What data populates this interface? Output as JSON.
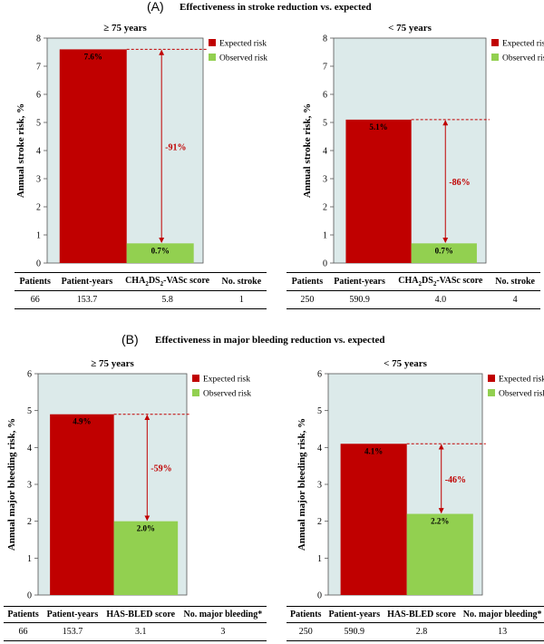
{
  "panelA": {
    "letter": "(A)",
    "heading": "Effectiveness in stroke reduction vs. expected",
    "subheading": "Effectiveness in stroke reduction vs. expected"
  },
  "panelB": {
    "letter": "(B)",
    "heading": "Effectiveness in major bleeding reduction vs. expected"
  },
  "legend": {
    "expected": "Expected risk",
    "observed": "Observed risk"
  },
  "colors": {
    "expected": "#c00000",
    "observed": "#92d050",
    "plot_bg": "#dceaea",
    "arrow": "#c00000"
  },
  "chart_data": [
    {
      "type": "bar",
      "title": "≥ 75 years",
      "ylabel": "Annual stroke risk, %",
      "ylim": [
        0,
        8
      ],
      "yticks": [
        0,
        1,
        2,
        3,
        4,
        5,
        6,
        7,
        8
      ],
      "categories": [
        "Expected risk",
        "Observed risk"
      ],
      "values": [
        7.6,
        0.7
      ],
      "data_labels": [
        "7.6%",
        "0.7%"
      ],
      "reduction_label": "-91%",
      "table": {
        "headers": [
          "Patients",
          "Patient-years",
          "CHA2DS2-VASc score",
          "No. stroke"
        ],
        "values": [
          "66",
          "153.7",
          "5.8",
          "1"
        ]
      }
    },
    {
      "type": "bar",
      "title": "< 75 years",
      "ylabel": "Annual stroke risk, %",
      "ylim": [
        0,
        8
      ],
      "yticks": [
        0,
        1,
        2,
        3,
        4,
        5,
        6,
        7,
        8
      ],
      "categories": [
        "Expected risk",
        "Observed risk"
      ],
      "values": [
        5.1,
        0.7
      ],
      "data_labels": [
        "5.1%",
        "0.7%"
      ],
      "reduction_label": "-86%",
      "table": {
        "headers": [
          "Patients",
          "Patient-years",
          "CHA2DS2-VASc score",
          "No. stroke"
        ],
        "values": [
          "250",
          "590.9",
          "4.0",
          "4"
        ]
      }
    },
    {
      "type": "bar",
      "title": "≥ 75 years",
      "ylabel": "Annual major bleeding risk, %",
      "ylim": [
        0,
        6
      ],
      "yticks": [
        0,
        1,
        2,
        3,
        4,
        5,
        6
      ],
      "categories": [
        "Expected risk",
        "Observed risk"
      ],
      "values": [
        4.9,
        2.0
      ],
      "data_labels": [
        "4.9%",
        "2.0%"
      ],
      "reduction_label": "-59%",
      "table": {
        "headers": [
          "Patients",
          "Patient-years",
          "HAS-BLED score",
          "No. major bleeding*"
        ],
        "values": [
          "66",
          "153.7",
          "3.1",
          "3"
        ]
      }
    },
    {
      "type": "bar",
      "title": "< 75 years",
      "ylabel": "Annual major bleeding risk, %",
      "ylim": [
        0,
        6
      ],
      "yticks": [
        0,
        1,
        2,
        3,
        4,
        5,
        6
      ],
      "categories": [
        "Expected risk",
        "Observed risk"
      ],
      "values": [
        4.1,
        2.2
      ],
      "data_labels": [
        "4.1%",
        "2.2%"
      ],
      "reduction_label": "-46%",
      "table": {
        "headers": [
          "Patients",
          "Patient-years",
          "HAS-BLED score",
          "No. major bleeding*"
        ],
        "values": [
          "250",
          "590.9",
          "2.8",
          "13"
        ]
      }
    }
  ]
}
